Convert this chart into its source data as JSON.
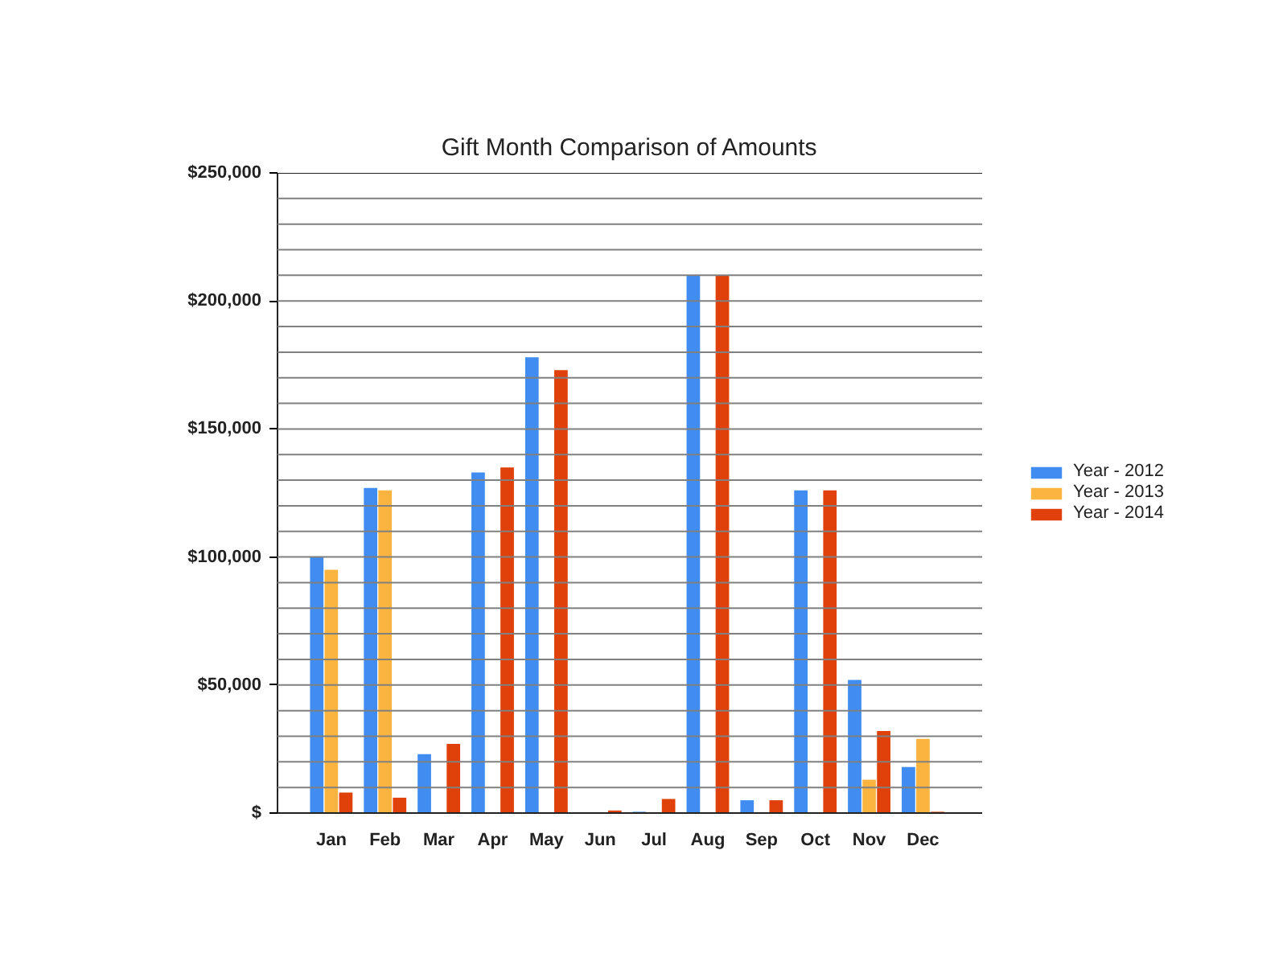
{
  "chart_data": {
    "type": "bar",
    "title": "Gift Month Comparison of Amounts",
    "categories": [
      "Jan",
      "Feb",
      "Mar",
      "Apr",
      "May",
      "Jun",
      "Jul",
      "Aug",
      "Sep",
      "Oct",
      "Nov",
      "Dec"
    ],
    "series": [
      {
        "name": "Year - 2012",
        "color": "#418cf0",
        "values": [
          100000,
          127000,
          23000,
          133000,
          178000,
          0,
          500,
          210000,
          5000,
          126000,
          52000,
          18000
        ]
      },
      {
        "name": "Year - 2013",
        "color": "#fcb441",
        "values": [
          95000,
          126000,
          0,
          0,
          0,
          0,
          0,
          0,
          0,
          0,
          13000,
          29000
        ]
      },
      {
        "name": "Year - 2014",
        "color": "#e0400a",
        "values": [
          8000,
          6000,
          27000,
          135000,
          173000,
          1000,
          5500,
          210000,
          5000,
          126000,
          32000,
          500
        ]
      }
    ],
    "ylim": [
      0,
      250000
    ],
    "yticks": [
      {
        "value": 0,
        "label": "$"
      },
      {
        "value": 10000,
        "label": null
      },
      {
        "value": 20000,
        "label": null
      },
      {
        "value": 30000,
        "label": null
      },
      {
        "value": 40000,
        "label": null
      },
      {
        "value": 50000,
        "label": "$50,000"
      },
      {
        "value": 60000,
        "label": null
      },
      {
        "value": 70000,
        "label": null
      },
      {
        "value": 80000,
        "label": null
      },
      {
        "value": 90000,
        "label": null
      },
      {
        "value": 100000,
        "label": "$100,000"
      },
      {
        "value": 110000,
        "label": null
      },
      {
        "value": 120000,
        "label": null
      },
      {
        "value": 130000,
        "label": null
      },
      {
        "value": 140000,
        "label": null
      },
      {
        "value": 150000,
        "label": "$150,000"
      },
      {
        "value": 160000,
        "label": null
      },
      {
        "value": 170000,
        "label": null
      },
      {
        "value": 180000,
        "label": null
      },
      {
        "value": 190000,
        "label": null
      },
      {
        "value": 200000,
        "label": "$200,000"
      },
      {
        "value": 210000,
        "label": null
      },
      {
        "value": 220000,
        "label": null
      },
      {
        "value": 230000,
        "label": null
      },
      {
        "value": 240000,
        "label": null
      },
      {
        "value": 250000,
        "label": "$250,000"
      }
    ],
    "grid": "y",
    "legend": "right"
  }
}
